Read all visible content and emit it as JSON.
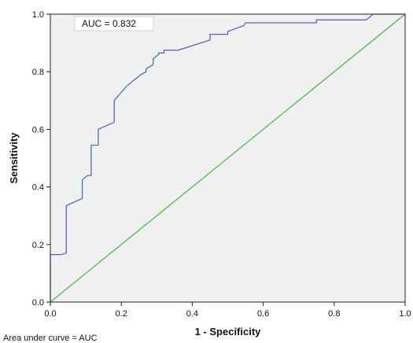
{
  "chart_data": {
    "type": "line",
    "xlabel": "1 - Specificity",
    "ylabel": "Sensitivity",
    "xlim": [
      0.0,
      1.0
    ],
    "ylim": [
      0.0,
      1.0
    ],
    "x_ticks": [
      "0.0",
      "0.2",
      "0.4",
      "0.6",
      "0.8",
      "1.0"
    ],
    "y_ticks": [
      "0.0",
      "0.2",
      "0.4",
      "0.6",
      "0.8",
      "1.0"
    ],
    "grid": false,
    "annotation": "AUC = 0.832",
    "footnote": "Area under curve = AUC",
    "colors": {
      "plot_background": "#f0f0f0",
      "roc_curve": "#5868b8",
      "reference_line": "#4cbb4c"
    },
    "series": [
      {
        "x": [
          0.0,
          0.0,
          0.03,
          0.045,
          0.045,
          0.09,
          0.09,
          0.105,
          0.115,
          0.115,
          0.135,
          0.135,
          0.18,
          0.18,
          0.215,
          0.245,
          0.255,
          0.27,
          0.27,
          0.29,
          0.29,
          0.305,
          0.305,
          0.32,
          0.32,
          0.36,
          0.45,
          0.45,
          0.5,
          0.5,
          0.545,
          0.55,
          0.75,
          0.75,
          0.89,
          0.9,
          0.91,
          1.0
        ],
        "y": [
          0.0,
          0.165,
          0.165,
          0.17,
          0.335,
          0.36,
          0.425,
          0.44,
          0.44,
          0.545,
          0.545,
          0.6,
          0.625,
          0.7,
          0.75,
          0.78,
          0.79,
          0.8,
          0.81,
          0.825,
          0.845,
          0.86,
          0.865,
          0.865,
          0.875,
          0.875,
          0.91,
          0.93,
          0.93,
          0.94,
          0.96,
          0.97,
          0.97,
          0.98,
          0.98,
          0.99,
          1.0,
          1.0
        ]
      },
      {
        "x": [
          0.0,
          1.0
        ],
        "y": [
          0.0,
          1.0
        ]
      }
    ]
  }
}
